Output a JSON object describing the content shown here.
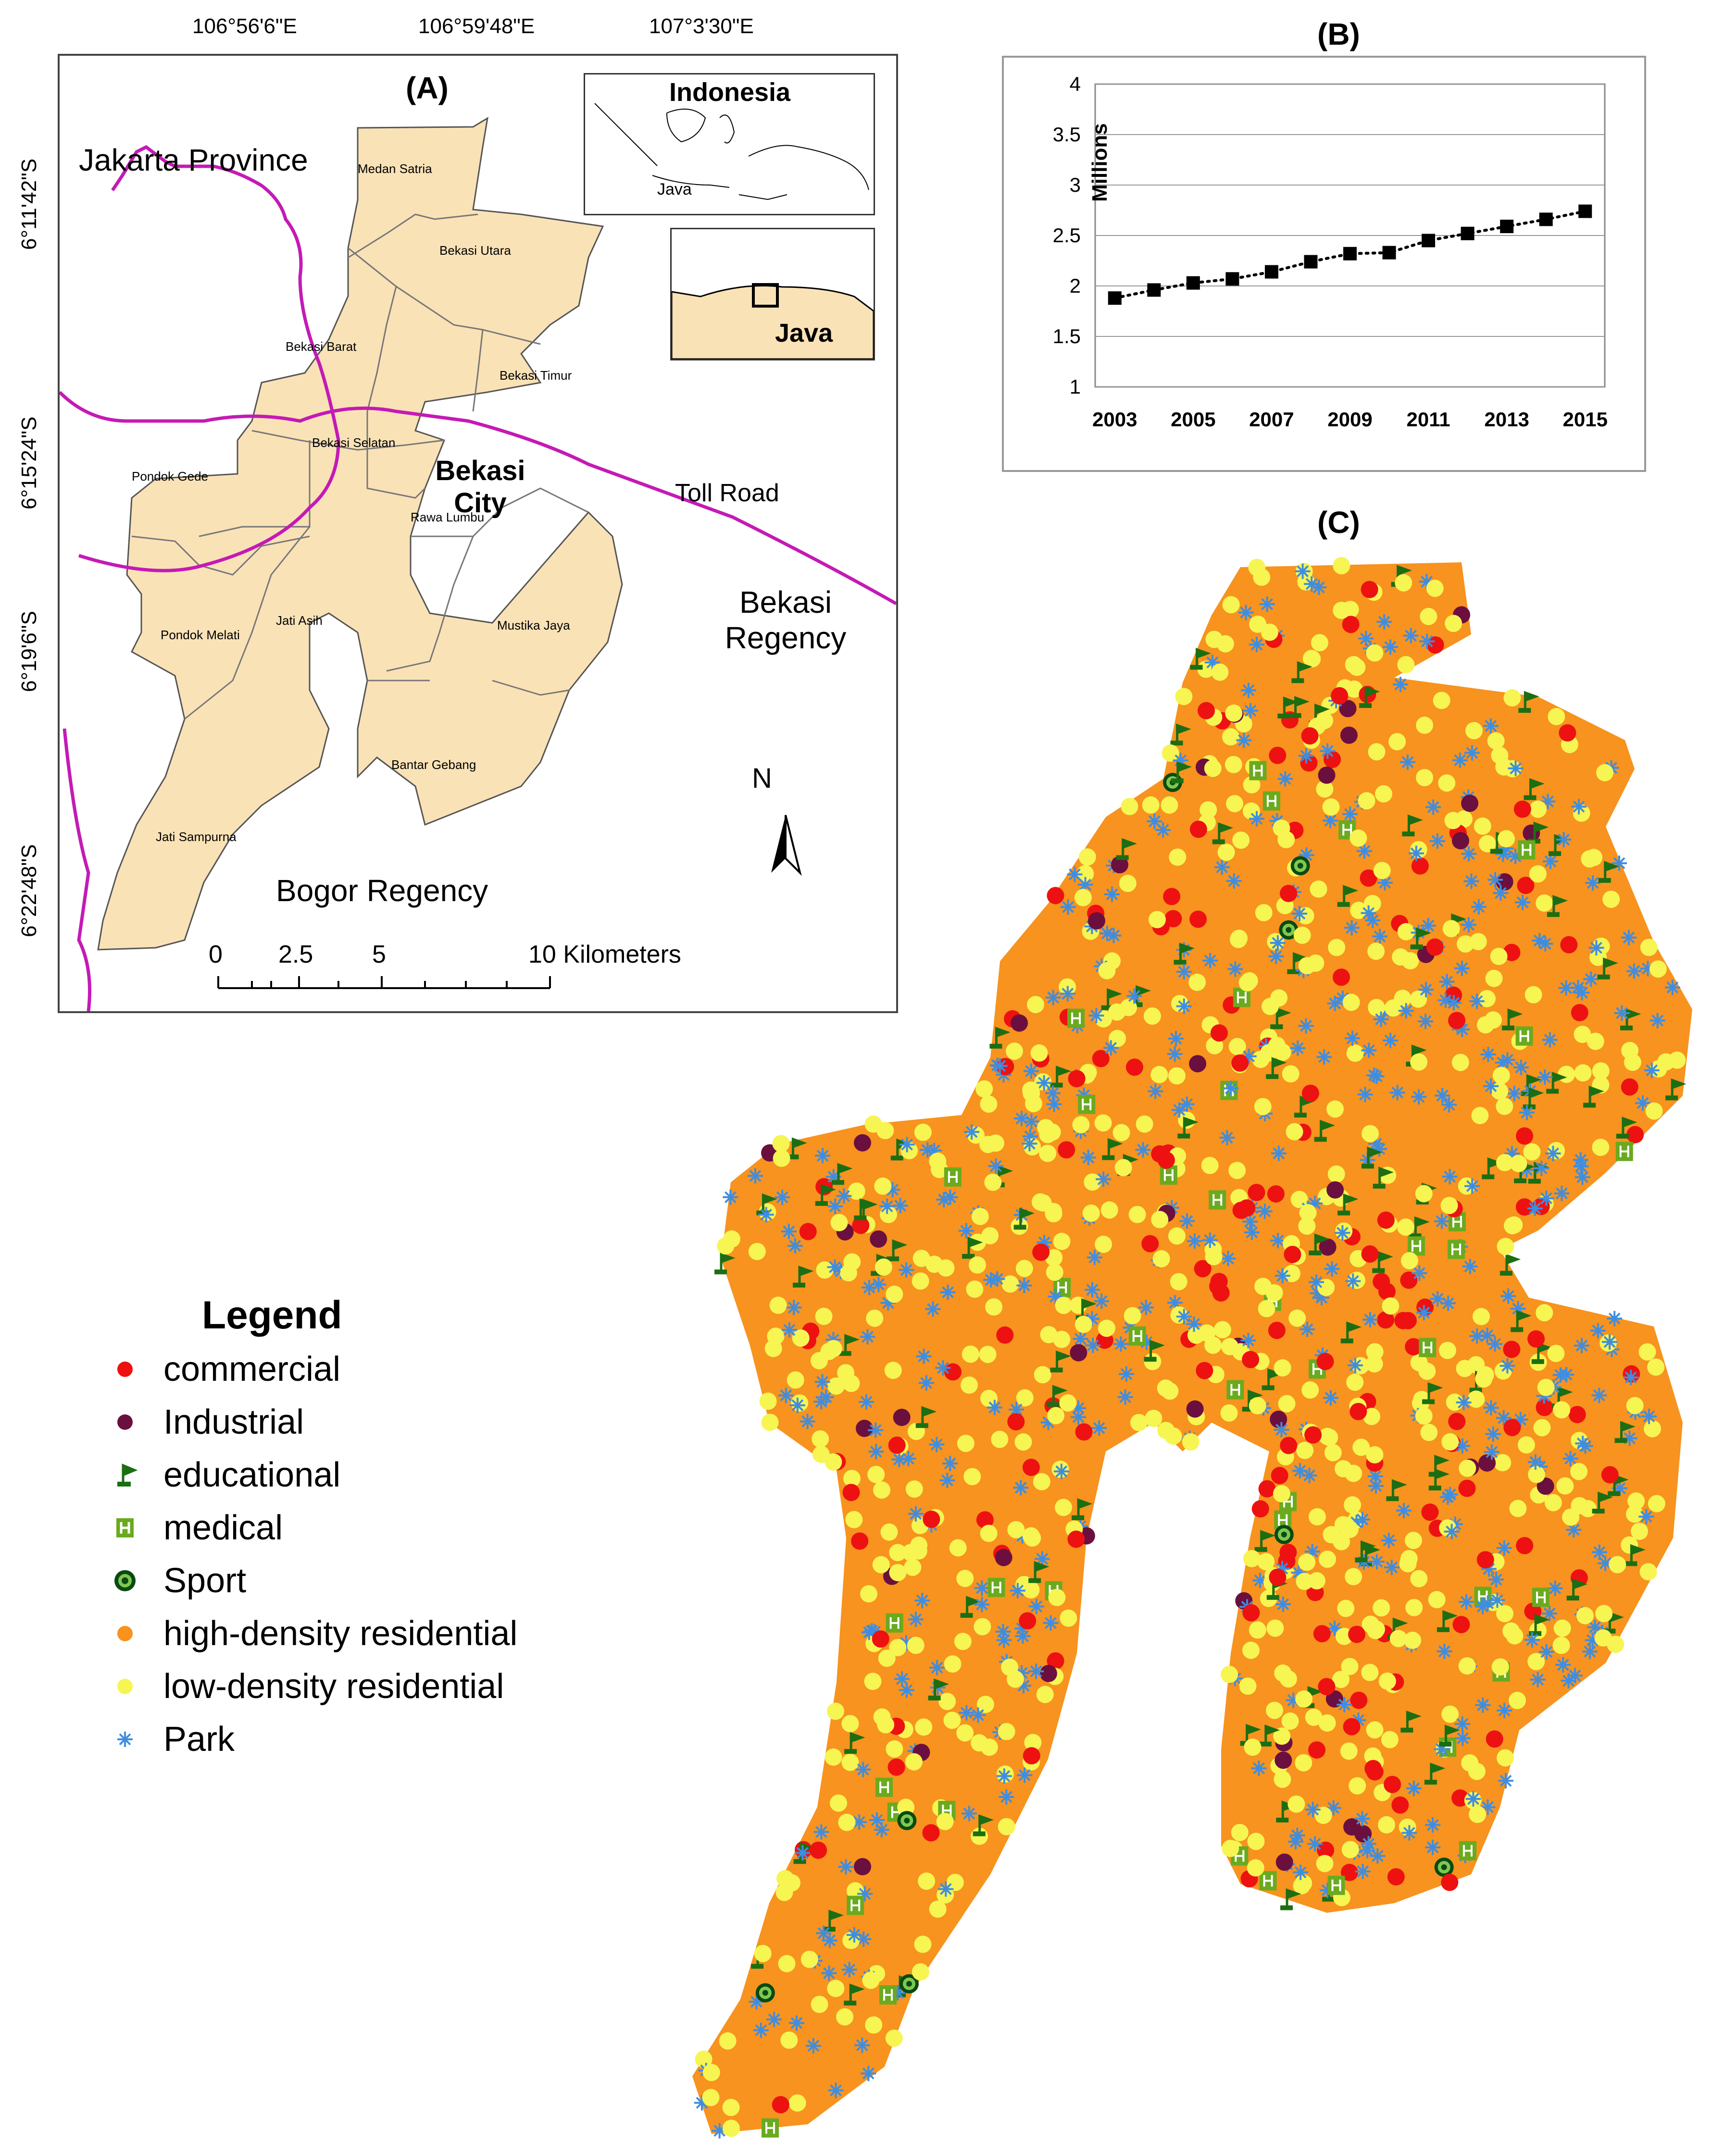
{
  "coordinates": {
    "top": [
      "106°56'6\"E",
      "106°59'48\"E",
      "107°3'30\"E"
    ],
    "left": [
      "6°11'42\"S",
      "6°15'24\"S",
      "6°19'6\"S",
      "6°22'48\"S"
    ]
  },
  "panel_a": {
    "title": "(A)",
    "regions": {
      "jakarta": "Jakarta Province",
      "bekasi_regency_1": "Bekasi",
      "bekasi_regency_2": "Regency",
      "bogor": "Bogor Regency",
      "toll_road": "Toll Road",
      "city_1": "Bekasi",
      "city_2": "City"
    },
    "districts": [
      "Medan Satria",
      "Bekasi Utara",
      "Bekasi Barat",
      "Bekasi Timur",
      "Bekasi Selatan",
      "Pondok Gede",
      "Rawa Lumbu",
      "Pondok Melati",
      "Jati Asih",
      "Mustika Jaya",
      "Bantar Gebang",
      "Jati Sampurna"
    ],
    "inset_indonesia": "Indonesia",
    "inset_java_small": "Java",
    "inset_java": "Java",
    "north": "N",
    "scale": [
      "0",
      "2.5",
      "5",
      "10 Kilometers"
    ],
    "colors": {
      "land": "#fae2b7",
      "road": "#c41ab5",
      "border": "#555555"
    }
  },
  "panel_b": {
    "title": "(B)"
  },
  "chart_data": {
    "type": "line",
    "ylabel": "Millions",
    "xlabel": "",
    "x": [
      2003,
      2004,
      2005,
      2006,
      2007,
      2008,
      2009,
      2010,
      2011,
      2012,
      2013,
      2014,
      2015
    ],
    "values": [
      1.88,
      1.96,
      2.03,
      2.07,
      2.14,
      2.24,
      2.32,
      2.33,
      2.45,
      2.52,
      2.59,
      2.66,
      2.74
    ],
    "xticks": [
      "2003",
      "2005",
      "2007",
      "2009",
      "2011",
      "2013",
      "2015"
    ],
    "yticks": [
      "1",
      "1.5",
      "2",
      "2.5",
      "3",
      "3.5",
      "4"
    ],
    "ylim": [
      1,
      4
    ],
    "grid": true,
    "line_style": "dotted",
    "marker": "square"
  },
  "panel_c": {
    "title": "(C)"
  },
  "legend": {
    "title": "Legend",
    "items": [
      {
        "label": "commercial",
        "color": "#ee1111",
        "symbol": "circle"
      },
      {
        "label": "Industrial",
        "color": "#6b0f3f",
        "symbol": "circle"
      },
      {
        "label": "educational",
        "color": "#1c6e12",
        "symbol": "flag"
      },
      {
        "label": "medical",
        "color": "#6aaa1f",
        "symbol": "hospital"
      },
      {
        "label": "Sport",
        "color": "#0f7a2a",
        "symbol": "target"
      },
      {
        "label": "high-density residential",
        "color": "#f7931e",
        "symbol": "circle"
      },
      {
        "label": "low-density residential",
        "color": "#f6f552",
        "symbol": "circle"
      },
      {
        "label": "Park",
        "color": "#3f8de0",
        "symbol": "star"
      }
    ]
  }
}
